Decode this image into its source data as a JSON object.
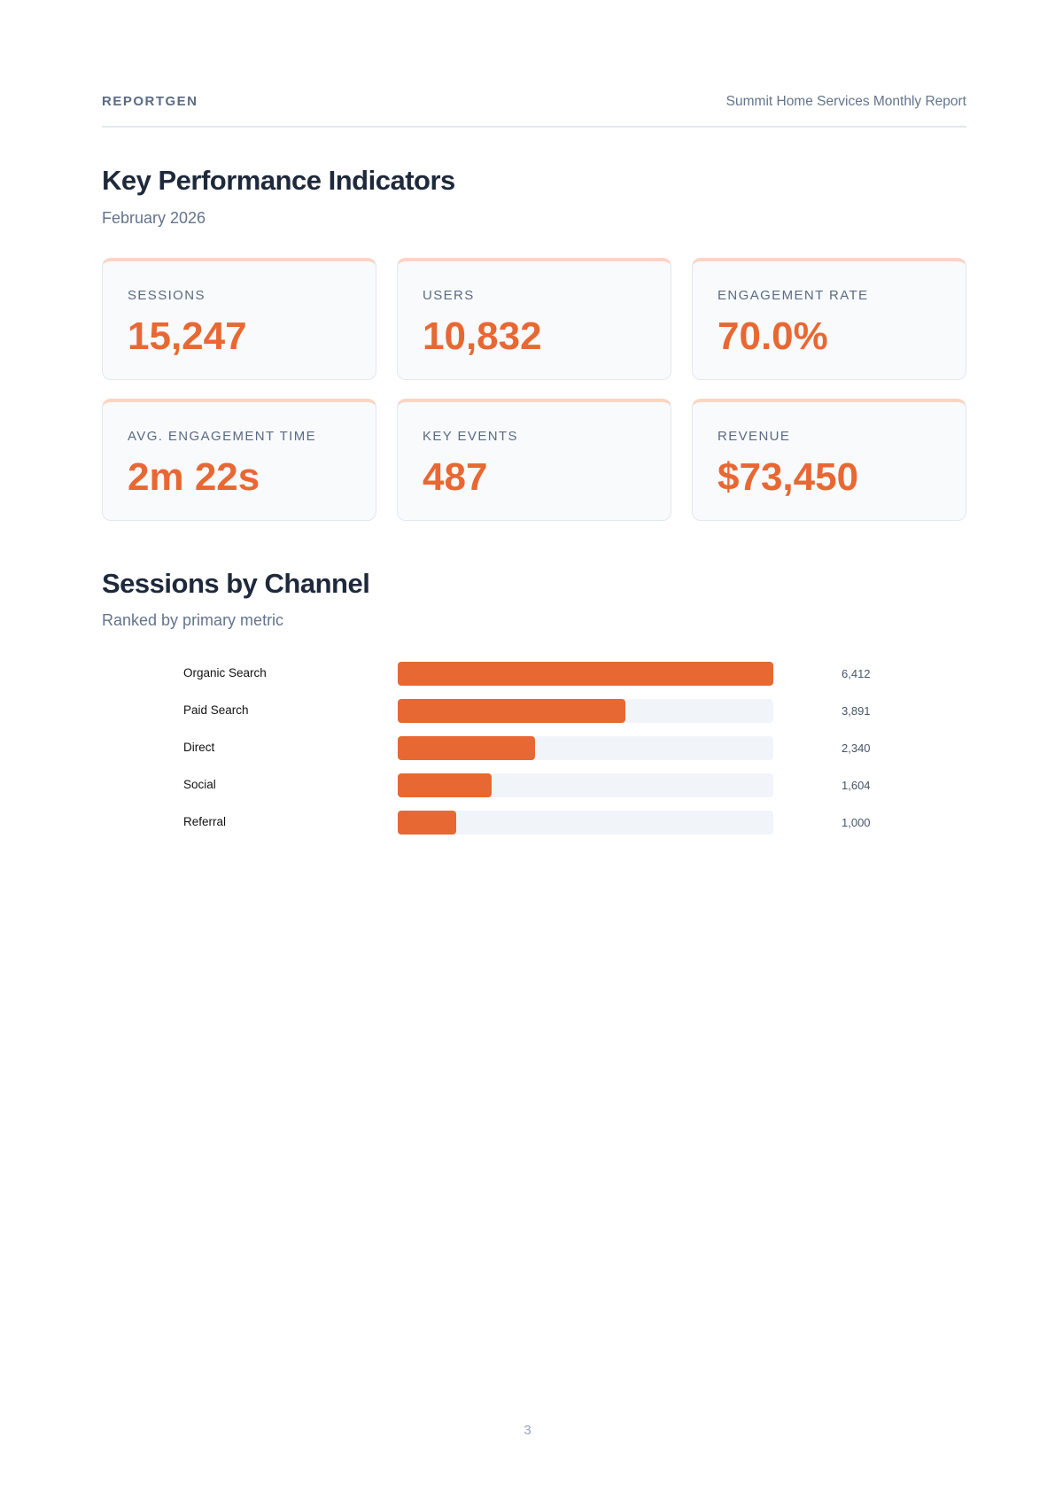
{
  "header": {
    "brand": "REPORTGEN",
    "report_title": "Summit Home Services Monthly Report"
  },
  "kpi": {
    "title": "Key Performance Indicators",
    "subtitle": "February 2026",
    "cards": [
      {
        "label": "SESSIONS",
        "value": "15,247"
      },
      {
        "label": "USERS",
        "value": "10,832"
      },
      {
        "label": "ENGAGEMENT RATE",
        "value": "70.0%"
      },
      {
        "label": "AVG. ENGAGEMENT TIME",
        "value": "2m 22s"
      },
      {
        "label": "KEY EVENTS",
        "value": "487"
      },
      {
        "label": "REVENUE",
        "value": "$73,450"
      }
    ]
  },
  "channels": {
    "title": "Sessions by Channel",
    "subtitle": "Ranked by primary metric"
  },
  "chart_data": {
    "type": "bar",
    "orientation": "horizontal",
    "categories": [
      "Organic Search",
      "Paid Search",
      "Direct",
      "Social",
      "Referral"
    ],
    "values": [
      6412,
      3891,
      2340,
      1604,
      1000
    ],
    "value_labels": [
      "6,412",
      "3,891",
      "2,340",
      "1,604",
      "1,000"
    ],
    "xlim": [
      0,
      6412
    ],
    "colors": {
      "bar": "#e86833",
      "track": "#f1f5f9"
    }
  },
  "footer": {
    "page_number": "3"
  }
}
